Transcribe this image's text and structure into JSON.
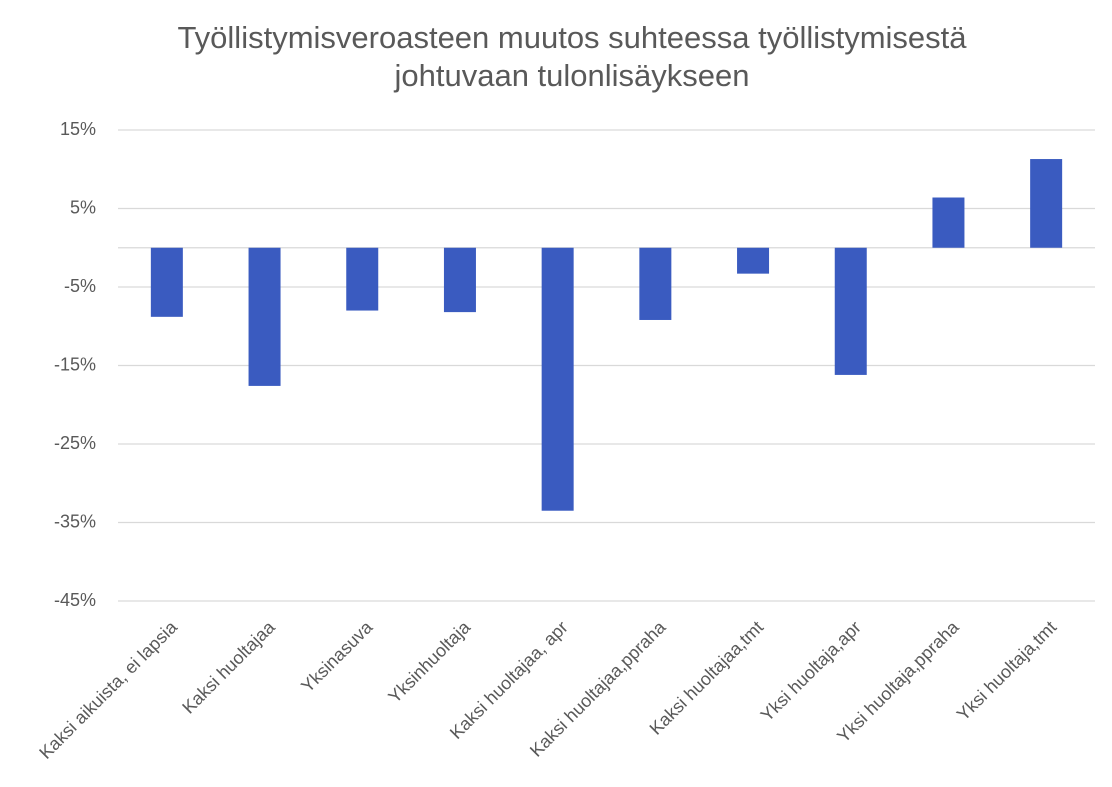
{
  "chart_data": {
    "type": "bar",
    "title": [
      "Työllistymisveroasteen muutos suhteessa työllistymisestä",
      "johtuvaan tulonlisäykseen"
    ],
    "categories": [
      "Kaksi aikuista, ei lapsia",
      "Kaksi huoltajaa",
      "Yksinasuva",
      "Yksinhuoltaja",
      "Kaksi huoltajaa, apr",
      "Kaksi huoltajaa,ppraha",
      "Kaksi huoltajaa,tmt",
      "Yksi huoltaja,apr",
      "Yksi huoltaja,ppraha",
      "Yksi huoltaja,tmt"
    ],
    "values": [
      -8.8,
      -17.6,
      -8.0,
      -8.2,
      -33.5,
      -9.2,
      -3.3,
      -16.2,
      6.4,
      11.3
    ],
    "color": "#3a5bc0",
    "ylim": [
      -45,
      15
    ],
    "yticks": [
      {
        "value": 15,
        "label": "15%"
      },
      {
        "value": 5,
        "label": "5%"
      },
      {
        "value": -5,
        "label": "-5%"
      },
      {
        "value": -15,
        "label": "-15%"
      },
      {
        "value": -25,
        "label": "-25%"
      },
      {
        "value": -35,
        "label": "-35%"
      },
      {
        "value": -45,
        "label": "-45%"
      }
    ],
    "grid": true
  }
}
